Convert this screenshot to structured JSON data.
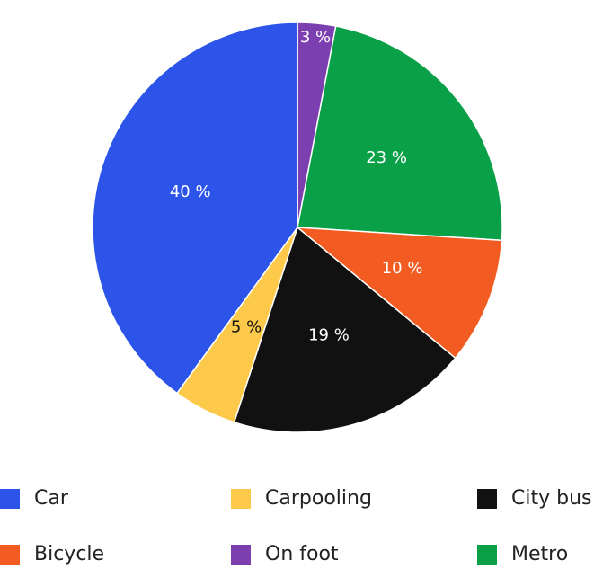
{
  "chart_data": {
    "type": "pie",
    "categories": [
      "On foot",
      "Metro",
      "Bicycle",
      "City bus",
      "Carpooling",
      "Car"
    ],
    "values": [
      3,
      23,
      10,
      19,
      5,
      40
    ],
    "value_labels": [
      "3 %",
      "23 %",
      "10 %",
      "19 %",
      "5 %",
      "40 %"
    ],
    "colors": [
      "#7b3fb0",
      "#0aa048",
      "#f25c22",
      "#111111",
      "#fdc94a",
      "#2c54e8"
    ]
  }
}
